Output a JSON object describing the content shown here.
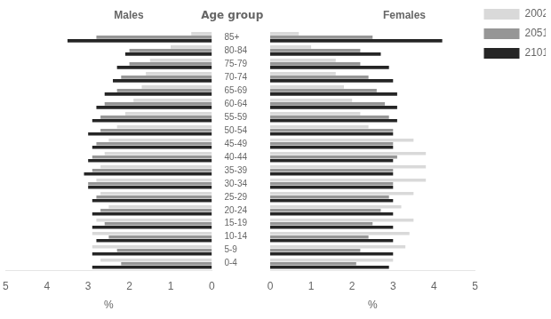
{
  "chart_data": [
    {
      "type": "bar",
      "orientation": "horizontal",
      "title": "Males",
      "x_label": "%",
      "y_label": "Age group",
      "categories": [
        "85+",
        "80-84",
        "75-79",
        "70-74",
        "65-69",
        "60-64",
        "55-59",
        "50-54",
        "45-49",
        "40-44",
        "35-39",
        "30-34",
        "25-29",
        "20-24",
        "15-19",
        "10-14",
        "5-9",
        "0-4"
      ],
      "series": [
        {
          "name": "2002",
          "color": "#d9d9d9",
          "values": [
            0.5,
            1.0,
            1.5,
            1.6,
            1.7,
            1.9,
            2.1,
            2.3,
            2.5,
            2.6,
            2.7,
            2.8,
            2.7,
            2.5,
            2.8,
            2.9,
            2.9,
            2.7
          ]
        },
        {
          "name": "2051",
          "color": "#969696",
          "values": [
            2.8,
            2.0,
            2.0,
            2.2,
            2.3,
            2.6,
            2.7,
            2.7,
            2.8,
            2.9,
            2.9,
            3.0,
            2.8,
            2.7,
            2.6,
            2.5,
            2.3,
            2.2
          ]
        },
        {
          "name": "2101",
          "color": "#252525",
          "values": [
            3.5,
            2.1,
            2.3,
            2.4,
            2.6,
            2.8,
            2.9,
            3.0,
            2.9,
            3.0,
            3.1,
            3.0,
            2.9,
            2.9,
            2.9,
            2.8,
            2.9,
            2.9
          ]
        }
      ],
      "xlim": [
        5,
        0
      ],
      "xticks": [
        5,
        4,
        3,
        2,
        1,
        0
      ],
      "grid": false
    },
    {
      "type": "bar",
      "orientation": "horizontal",
      "title": "Females",
      "x_label": "%",
      "categories": [
        "85+",
        "80-84",
        "75-79",
        "70-74",
        "65-69",
        "60-64",
        "55-59",
        "50-54",
        "45-49",
        "40-44",
        "35-39",
        "30-34",
        "25-29",
        "20-24",
        "15-19",
        "10-14",
        "5-9",
        "0-4"
      ],
      "series": [
        {
          "name": "2002",
          "color": "#d9d9d9",
          "values": [
            0.7,
            1.0,
            1.6,
            1.6,
            1.8,
            2.0,
            2.2,
            2.4,
            3.5,
            3.8,
            3.8,
            3.8,
            3.5,
            3.2,
            3.5,
            3.4,
            3.3,
            3.0
          ]
        },
        {
          "name": "2051",
          "color": "#969696",
          "values": [
            2.5,
            2.2,
            2.2,
            2.4,
            2.6,
            2.8,
            2.9,
            3.0,
            3.0,
            3.1,
            3.0,
            3.0,
            2.9,
            2.7,
            2.5,
            2.4,
            2.2,
            2.1
          ]
        },
        {
          "name": "2101",
          "color": "#252525",
          "values": [
            4.2,
            2.7,
            2.9,
            3.0,
            3.1,
            3.1,
            3.1,
            3.0,
            3.0,
            3.0,
            3.0,
            3.0,
            3.0,
            3.0,
            3.0,
            3.0,
            3.0,
            2.9
          ]
        }
      ],
      "xlim": [
        0,
        5
      ],
      "xticks": [
        0,
        1,
        2,
        3,
        4,
        5
      ],
      "grid": false,
      "legend": "right",
      "tick_labels": "x"
    }
  ]
}
